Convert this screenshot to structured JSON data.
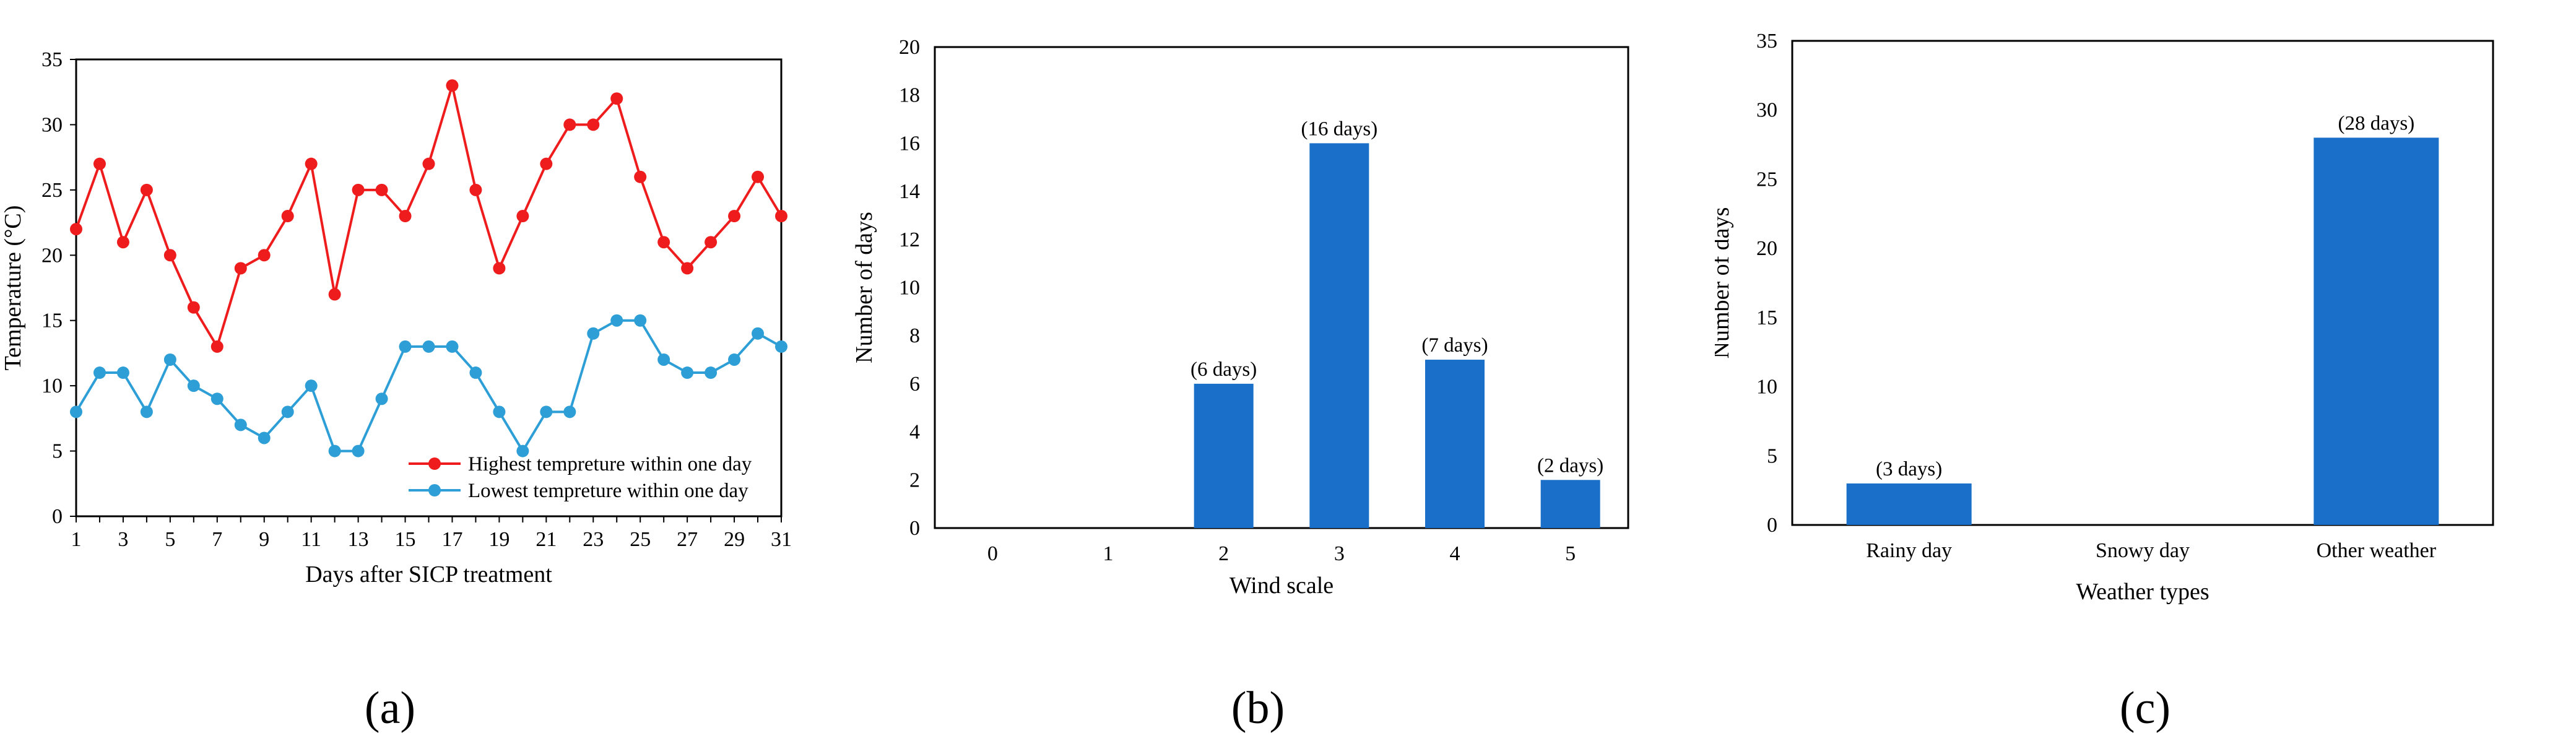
{
  "colors": {
    "highest": "#ee1c1c",
    "lowest": "#2e9fd6",
    "bar": "#1a70c8",
    "axis": "#000000"
  },
  "chart_data": [
    {
      "panel_label": "(a)",
      "type": "line",
      "xlabel": "Days after SICP treatment",
      "ylabel": "Temperature (°C)",
      "ylim": [
        0,
        35
      ],
      "yticks": [
        0,
        5,
        10,
        15,
        20,
        25,
        30,
        35
      ],
      "xticks": [
        1,
        3,
        5,
        7,
        9,
        11,
        13,
        15,
        17,
        19,
        21,
        23,
        25,
        27,
        29,
        31
      ],
      "legend_position": "bottom-right",
      "x": [
        1,
        2,
        3,
        4,
        5,
        6,
        7,
        8,
        9,
        10,
        11,
        12,
        13,
        14,
        15,
        16,
        17,
        18,
        19,
        20,
        21,
        22,
        23,
        24,
        25,
        26,
        27,
        28,
        29,
        30,
        31
      ],
      "series": [
        {
          "name": "Highest tempreture within one day",
          "color": "#ee1c1c",
          "values": [
            22,
            27,
            21,
            25,
            20,
            16,
            13,
            19,
            20,
            23,
            27,
            17,
            25,
            25,
            23,
            27,
            33,
            25,
            19,
            23,
            27,
            30,
            30,
            32,
            26,
            21,
            19,
            21,
            23,
            26,
            23
          ]
        },
        {
          "name": "Lowest tempreture within one day",
          "color": "#2e9fd6",
          "values": [
            8,
            11,
            11,
            8,
            12,
            10,
            9,
            7,
            6,
            8,
            10,
            5,
            5,
            9,
            13,
            13,
            13,
            11,
            8,
            5,
            8,
            8,
            14,
            15,
            15,
            12,
            11,
            11,
            12,
            14,
            13
          ]
        }
      ]
    },
    {
      "panel_label": "(b)",
      "type": "bar",
      "xlabel": "Wind scale",
      "ylabel": "Number of days",
      "ylim": [
        0,
        20
      ],
      "yticks": [
        0,
        2,
        4,
        6,
        8,
        10,
        12,
        14,
        16,
        18,
        20
      ],
      "categories": [
        "0",
        "1",
        "2",
        "3",
        "4",
        "5"
      ],
      "values": [
        0,
        0,
        6,
        16,
        7,
        2
      ],
      "data_labels": [
        "",
        "",
        "(6 days)",
        "(16 days)",
        "(7 days)",
        "(2 days)"
      ]
    },
    {
      "panel_label": "(c)",
      "type": "bar",
      "xlabel": "Weather types",
      "ylabel": "Number of days",
      "ylim": [
        0,
        35
      ],
      "yticks": [
        0,
        5,
        10,
        15,
        20,
        25,
        30,
        35
      ],
      "categories": [
        "Rainy day",
        "Snowy day",
        "Other weather"
      ],
      "values": [
        3,
        0,
        28
      ],
      "data_labels": [
        "(3 days)",
        "",
        "(28 days)"
      ]
    }
  ]
}
